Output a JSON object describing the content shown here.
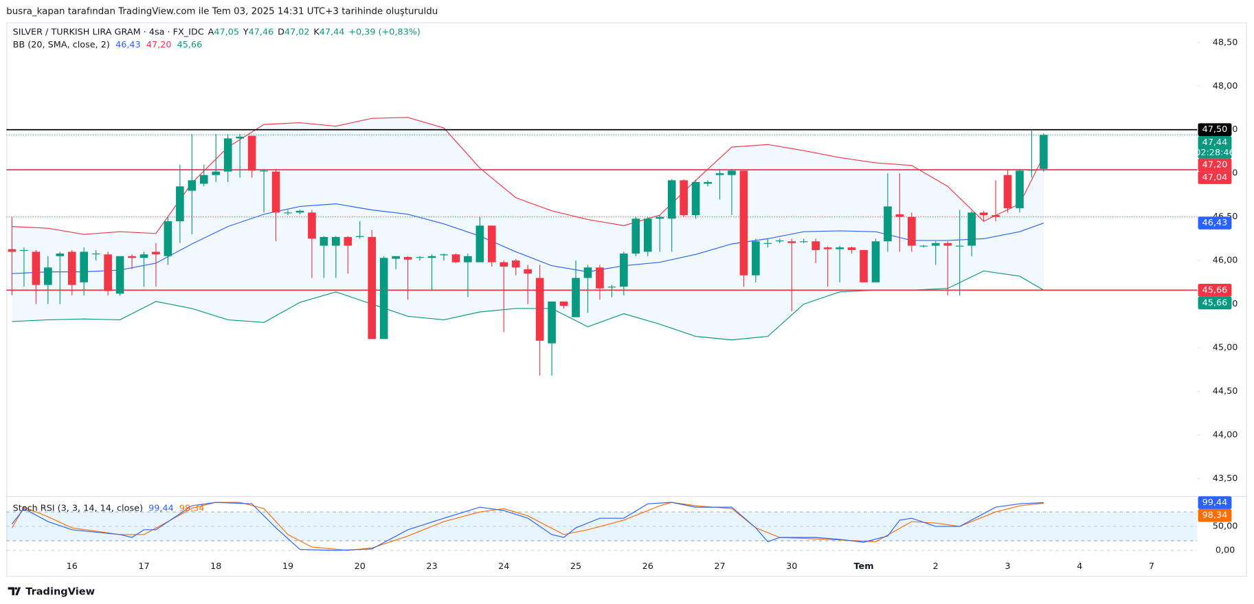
{
  "chart_data": {
    "type": "candlestick",
    "caption": "busra_kapan tarafından TradingView.com ile Tem 03, 2025 14:31 UTC+3 tarihinde oluşturuldu",
    "legend": {
      "symbol": "SILVER / TURKISH LIRA GRAM · 4sa · FX_IDC",
      "ohlc": [
        {
          "key": "A",
          "value": "47,05"
        },
        {
          "key": "Y",
          "value": "47,46"
        },
        {
          "key": "D",
          "value": "47,02"
        },
        {
          "key": "K",
          "value": "47,44"
        }
      ],
      "change": "+0,39 (+0,83%)"
    },
    "countdown": "02:28:46",
    "brand": "TradingView",
    "up_color": "#089981",
    "down_color": "#f23645",
    "xlim": [
      -1,
      98.8
    ],
    "xticks": [
      {
        "value": 5,
        "label": "16"
      },
      {
        "value": 11,
        "label": "17"
      },
      {
        "value": 17,
        "label": "18"
      },
      {
        "value": 23,
        "label": "19"
      },
      {
        "value": 29,
        "label": "20"
      },
      {
        "value": 35,
        "label": "23"
      },
      {
        "value": 41,
        "label": "24"
      },
      {
        "value": 47,
        "label": "25"
      },
      {
        "value": 53,
        "label": "26"
      },
      {
        "value": 59,
        "label": "27"
      },
      {
        "value": 65,
        "label": "30"
      },
      {
        "value": 71,
        "label": "Tem"
      },
      {
        "value": 77,
        "label": "2"
      },
      {
        "value": 83,
        "label": "3"
      },
      {
        "value": 89,
        "label": "4"
      },
      {
        "value": 95,
        "label": "7"
      }
    ],
    "ylim": [
      43.3,
      48.73
    ],
    "yticks": [
      {
        "value": 48.5,
        "label": "48,50"
      },
      {
        "value": 48,
        "label": "48,00"
      },
      {
        "value": 47.5,
        "label": "47,50"
      },
      {
        "value": 47,
        "label": "47,00"
      },
      {
        "value": 46.5,
        "label": "46,50"
      },
      {
        "value": 46,
        "label": "46,00"
      },
      {
        "value": 45.5,
        "label": "45,50"
      },
      {
        "value": 45,
        "label": "45,00"
      },
      {
        "value": 44.5,
        "label": "44,50"
      },
      {
        "value": 44,
        "label": "44,00"
      },
      {
        "value": 43.5,
        "label": "43,50"
      }
    ],
    "open": [
      46.13,
      46.12,
      46.1,
      45.72,
      46.05,
      46.1,
      45.75,
      46.08,
      46.07,
      45.62,
      46.05,
      46.03,
      46.1,
      46.05,
      46.45,
      46.8,
      46.88,
      46.98,
      47.02,
      47.4,
      47.43,
      47.03,
      47.02,
      46.55,
      46.55,
      46.55,
      46.17,
      46.17,
      46.27,
      46.27,
      46.27,
      45.1,
      46.02,
      46.04,
      46.04,
      46.03,
      46.06,
      46.07,
      45.98,
      45.98,
      46.4,
      45.98,
      46.0,
      45.9,
      45.8,
      45.05,
      45.53,
      45.35,
      45.8,
      45.92,
      45.7,
      45.7,
      46.08,
      46.1,
      46.48,
      46.48,
      46.92,
      46.52,
      46.88,
      46.98,
      46.98,
      47.03,
      45.83,
      46.2,
      46.22,
      46.22,
      46.22,
      46.22,
      46.15,
      46.13,
      46.15,
      46.12,
      45.75,
      46.22,
      46.53,
      46.5,
      46.17,
      46.17,
      46.2,
      46.17,
      46.17,
      46.55,
      46.52,
      46.98,
      46.6,
      47.03,
      47.05
    ],
    "high": [
      46.5,
      46.15,
      46.12,
      46.05,
      46.1,
      46.12,
      46.15,
      46.12,
      46.1,
      46.05,
      46.07,
      46.1,
      46.2,
      46.5,
      47.1,
      47.45,
      47.1,
      47.45,
      47.45,
      47.45,
      47.43,
      47.05,
      47.05,
      46.58,
      46.58,
      46.58,
      46.28,
      46.28,
      46.28,
      46.45,
      46.35,
      46.05,
      46.05,
      46.05,
      46.05,
      46.07,
      46.08,
      46.08,
      46.08,
      46.5,
      46.4,
      46.0,
      46.02,
      45.95,
      45.95,
      45.53,
      45.53,
      46.0,
      45.95,
      45.95,
      45.72,
      46.1,
      46.5,
      46.5,
      46.52,
      46.93,
      46.93,
      46.92,
      46.92,
      47.05,
      47.05,
      47.03,
      46.25,
      46.25,
      46.25,
      46.25,
      46.25,
      46.25,
      46.16,
      46.17,
      46.16,
      46.12,
      46.25,
      47.0,
      47.0,
      46.55,
      46.18,
      46.22,
      46.22,
      46.58,
      46.57,
      46.57,
      46.92,
      47.05,
      47.05,
      47.5,
      47.46
    ],
    "low": [
      45.6,
      45.7,
      45.5,
      45.5,
      45.5,
      45.6,
      45.6,
      46.0,
      45.6,
      45.6,
      45.9,
      45.7,
      45.7,
      45.95,
      46.2,
      46.3,
      46.85,
      46.9,
      46.9,
      46.95,
      46.95,
      46.55,
      46.22,
      46.52,
      46.53,
      45.8,
      45.8,
      45.8,
      45.85,
      46.25,
      45.1,
      45.1,
      45.9,
      45.55,
      46.0,
      45.65,
      46.0,
      45.97,
      45.58,
      45.98,
      45.93,
      45.18,
      45.83,
      45.5,
      44.68,
      44.68,
      45.45,
      45.35,
      45.4,
      45.55,
      45.58,
      45.6,
      46.05,
      46.05,
      46.1,
      46.1,
      46.5,
      46.48,
      46.85,
      46.7,
      46.52,
      45.7,
      45.75,
      46.15,
      46.2,
      45.42,
      46.2,
      45.97,
      45.7,
      45.75,
      46.08,
      45.75,
      45.75,
      46.1,
      46.1,
      46.1,
      46.15,
      45.95,
      45.6,
      45.6,
      46.05,
      46.45,
      46.45,
      46.55,
      46.55,
      46.95,
      47.02
    ],
    "close": [
      46.1,
      46.12,
      45.72,
      45.92,
      46.08,
      45.72,
      46.1,
      46.08,
      45.65,
      46.05,
      46.03,
      46.07,
      46.07,
      46.45,
      46.85,
      46.92,
      46.98,
      47.02,
      47.4,
      47.42,
      47.03,
      47.03,
      46.55,
      46.55,
      46.57,
      46.25,
      46.27,
      46.27,
      46.17,
      46.28,
      45.1,
      46.03,
      46.05,
      46.01,
      46.04,
      46.05,
      46.07,
      45.98,
      46.05,
      46.4,
      45.98,
      45.93,
      45.92,
      45.85,
      45.08,
      45.53,
      45.48,
      45.8,
      45.92,
      45.68,
      45.7,
      46.08,
      46.48,
      46.48,
      46.5,
      46.92,
      46.52,
      46.9,
      46.9,
      47.0,
      47.03,
      45.83,
      46.22,
      46.2,
      46.23,
      46.2,
      46.22,
      46.12,
      46.13,
      46.15,
      46.12,
      45.75,
      46.22,
      46.62,
      46.5,
      46.17,
      46.17,
      46.2,
      46.17,
      46.17,
      46.55,
      46.52,
      46.5,
      46.6,
      47.03,
      47.04,
      47.44
    ],
    "hlines": [
      {
        "value": 47.5,
        "label": "47,50",
        "color": "#000000",
        "style": "solid"
      },
      {
        "value": 47.04,
        "label": "47,04",
        "color": "#f23645",
        "style": "solid"
      },
      {
        "value": 45.66,
        "label": "45,66",
        "color": "#f23645",
        "style": "solid"
      },
      {
        "value": 46.5,
        "color": "#f23645",
        "style": "dotted"
      }
    ],
    "bollinger": {
      "label": "BB (20, SMA, close, 2)",
      "fill": "#2196f3",
      "x": [
        0,
        3,
        6,
        9,
        12,
        15,
        18,
        21,
        24,
        27,
        30,
        33,
        36,
        39,
        42,
        45,
        48,
        51,
        54,
        57,
        60,
        63,
        66,
        69,
        72,
        75,
        78,
        81,
        84,
        86
      ],
      "middle": {
        "color": "#2962ff",
        "legend_value": "46,43",
        "values": [
          45.85,
          45.87,
          45.87,
          45.89,
          45.97,
          46.19,
          46.39,
          46.53,
          46.62,
          46.65,
          46.58,
          46.53,
          46.42,
          46.28,
          46.1,
          45.94,
          45.87,
          45.94,
          45.98,
          46.07,
          46.19,
          46.25,
          46.33,
          46.34,
          46.33,
          46.23,
          46.23,
          46.25,
          46.33,
          46.43
        ]
      },
      "upper": {
        "color": "#f23645",
        "legend_value": "47,20",
        "values": [
          46.39,
          46.37,
          46.3,
          46.33,
          46.31,
          46.89,
          47.3,
          47.56,
          47.58,
          47.54,
          47.63,
          47.64,
          47.52,
          47.06,
          46.72,
          46.57,
          46.47,
          46.4,
          46.52,
          46.92,
          47.3,
          47.33,
          47.26,
          47.18,
          47.12,
          47.09,
          46.85,
          46.45,
          46.65,
          47.2
        ]
      },
      "lower": {
        "color": "#089981",
        "legend_value": "45,66",
        "values": [
          45.3,
          45.32,
          45.33,
          45.32,
          45.53,
          45.45,
          45.32,
          45.29,
          45.52,
          45.64,
          45.5,
          45.36,
          45.32,
          45.41,
          45.45,
          45.45,
          45.24,
          45.39,
          45.27,
          45.13,
          45.09,
          45.13,
          45.5,
          45.64,
          45.66,
          45.66,
          45.68,
          45.88,
          45.82,
          45.66
        ]
      }
    },
    "stoch": {
      "label": "Stoch RSI (3, 3, 14, 14, close)",
      "ylim": [
        -20,
        113.3
      ],
      "yticks": [
        {
          "value": 50,
          "label": "50,00"
        },
        {
          "value": 0,
          "label": "0,00"
        }
      ],
      "bands": [
        20,
        80
      ],
      "band_color": "#2196f3",
      "k": {
        "color": "#2962ff",
        "legend_value": "99,44",
        "x": [
          0,
          1,
          3,
          5,
          9,
          10,
          11,
          12,
          15,
          17,
          20,
          22,
          24,
          27,
          30,
          33,
          36,
          39,
          41,
          43,
          45,
          46,
          47,
          49,
          51,
          53,
          55,
          57,
          60,
          62,
          63,
          64,
          67,
          69,
          71,
          73,
          74,
          75,
          77,
          79,
          82,
          84,
          86
        ],
        "values": [
          55,
          87,
          60,
          43,
          33,
          27,
          43,
          43,
          93,
          100,
          97,
          47,
          2,
          0,
          3,
          43,
          67,
          90,
          83,
          67,
          33,
          27,
          47,
          67,
          67,
          97,
          100,
          90,
          90,
          47,
          18,
          27,
          27,
          23,
          17,
          30,
          63,
          67,
          50,
          50,
          90,
          97,
          99.44
        ]
      },
      "d": {
        "color": "#ff6d00",
        "legend_value": "98,34",
        "x": [
          0,
          1,
          3,
          5,
          9,
          11,
          13,
          15,
          17,
          19,
          21,
          23,
          25,
          28,
          30,
          33,
          36,
          39,
          41,
          43,
          46,
          48,
          51,
          54,
          55,
          57,
          60,
          62,
          64,
          68,
          72,
          75,
          77,
          79,
          82,
          84,
          86
        ],
        "values": [
          47,
          90,
          70,
          47,
          33,
          33,
          60,
          88,
          100,
          100,
          87,
          33,
          7,
          0,
          5,
          30,
          60,
          80,
          87,
          72,
          33,
          43,
          63,
          93,
          100,
          93,
          87,
          47,
          27,
          23,
          18,
          60,
          57,
          50,
          80,
          93,
          98.34
        ]
      }
    }
  }
}
